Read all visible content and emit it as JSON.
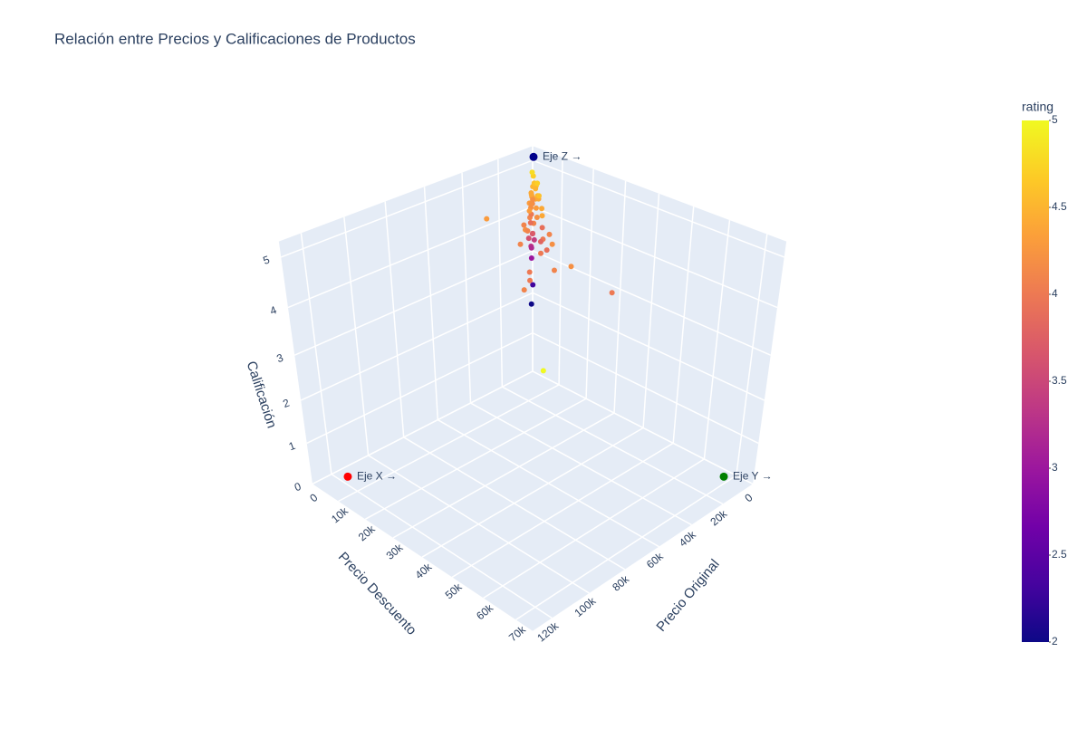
{
  "chart_data": {
    "type": "scatter3d",
    "title": "Relación entre Precios y Calificaciones de Productos",
    "x": [
      3000,
      5000,
      8000,
      12000,
      2000,
      4000,
      6000,
      10000,
      15000,
      7000,
      1500,
      9000,
      20000,
      3500,
      6500,
      4500,
      5500,
      3000,
      8000,
      25000,
      18000,
      30000,
      2500,
      1000,
      12000,
      14000,
      22000,
      35000,
      40000,
      50000,
      16000,
      9500,
      11000,
      4200,
      2800,
      7500,
      6000,
      13000,
      19000,
      27000,
      33000,
      45000,
      8500,
      3800,
      1200,
      60000,
      23000,
      10500,
      5200,
      120000,
      2000,
      17000,
      4800,
      36000,
      9000,
      32000
    ],
    "y": [
      1500,
      2500,
      4000,
      6000,
      1200,
      3500,
      3000,
      7000,
      9000,
      5000,
      900,
      4500,
      15000,
      2000,
      3200,
      2200,
      2800,
      1800,
      4200,
      12000,
      16000,
      20000,
      2000,
      800,
      10000,
      7000,
      11000,
      45000,
      30000,
      28000,
      12000,
      5500,
      5000,
      3000,
      2600,
      6000,
      5500,
      9000,
      8000,
      22000,
      15000,
      25000,
      3800,
      1700,
      600,
      32000,
      18000,
      8200,
      4600,
      72000,
      1000,
      13000,
      2400,
      33000,
      8500,
      3000
    ],
    "z": [
      4.3,
      4.4,
      4.2,
      4.1,
      4.5,
      4.6,
      4.0,
      4.3,
      4.1,
      4.4,
      4.2,
      3.9,
      4.0,
      3.5,
      3.3,
      3.2,
      3.0,
      2.3,
      2.0,
      4.2,
      4.1,
      4.0,
      4.6,
      4.7,
      4.4,
      4.3,
      4.1,
      4.0,
      4.1,
      4.0,
      3.8,
      3.7,
      3.6,
      3.4,
      4.5,
      4.5,
      4.4,
      4.2,
      4.1,
      4.2,
      4.1,
      4.0,
      4.3,
      4.4,
      4.1,
      4.1,
      3.9,
      4.6,
      4.7,
      5.0,
      4.8,
      4.4,
      4.2,
      4.2,
      3.9,
      4.3
    ],
    "xaxis": {
      "title": "Precio Original",
      "color": "#ff0000"
    },
    "yaxis": {
      "title": "Precio Descuento",
      "color": "#008000"
    },
    "zaxis": {
      "title": "Calificación",
      "color": "#0000ff"
    },
    "xlim": [
      0,
      130000
    ],
    "xticks": [
      0,
      {
        "value": 20000,
        "label": "20k"
      },
      {
        "value": 40000,
        "label": "40k"
      },
      {
        "value": 60000,
        "label": "60k"
      },
      {
        "value": 80000,
        "label": "80k"
      },
      {
        "value": 100000,
        "label": "100k"
      },
      {
        "value": 120000,
        "label": "120k"
      }
    ],
    "ylim": [
      0,
      75000
    ],
    "yticks": [
      0,
      {
        "value": 10000,
        "label": "10k"
      },
      {
        "value": 20000,
        "label": "20k"
      },
      {
        "value": 30000,
        "label": "30k"
      },
      {
        "value": 40000,
        "label": "40k"
      },
      {
        "value": 50000,
        "label": "50k"
      },
      {
        "value": 60000,
        "label": "60k"
      },
      {
        "value": 70000,
        "label": "70k"
      }
    ],
    "zlim": [
      0,
      5.3
    ],
    "zticks": [
      0,
      1,
      2,
      3,
      4,
      5
    ],
    "colorscale": [
      "#0d0887",
      "#46039f",
      "#7201a8",
      "#9c179e",
      "#bd3786",
      "#d8576b",
      "#ed7953",
      "#fb9f3a",
      "#fdca26",
      "#f0f921"
    ],
    "colorbar": {
      "title": "rating",
      "range": [
        2,
        5
      ],
      "ticks": [
        2,
        2.5,
        3,
        3.5,
        4,
        4.5,
        5
      ]
    },
    "annotations": [
      {
        "text": "Eje X →",
        "color": "#ff0000",
        "axis": "x"
      },
      {
        "text": "Eje Y →",
        "color": "#008000",
        "axis": "y"
      },
      {
        "text": "Eje Z →",
        "color": "#00008b",
        "axis": "z"
      }
    ]
  }
}
